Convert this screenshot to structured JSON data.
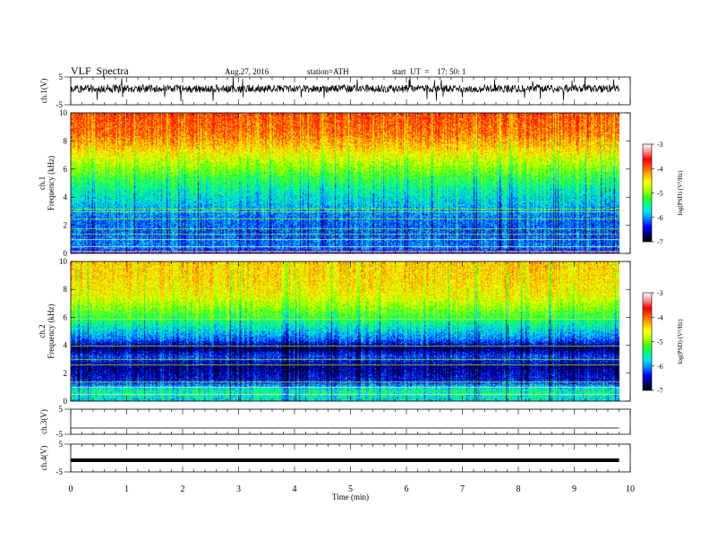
{
  "header": {
    "title": "VLF  Spectra",
    "date": "Aug.27, 2016",
    "station": "station=ATH",
    "start": "start  UT  =    17: 50: 1"
  },
  "colors": {
    "colormap": [
      "#000000",
      "#00006e",
      "#0000ff",
      "#0080ff",
      "#00e0ff",
      "#00ff80",
      "#40ff00",
      "#c0ff00",
      "#ffff00",
      "#ffb000",
      "#ff5000",
      "#ff0000",
      "#ff9090",
      "#ffffff"
    ]
  },
  "chart_data": [
    {
      "type": "line",
      "name": "ch1-waveform",
      "ylabel": "ch.1(V)",
      "ylim": [
        -5,
        5
      ],
      "yticks": [
        "5",
        "-5"
      ],
      "xlim": [
        0,
        10
      ],
      "x_end": 9.8,
      "baseline": 0.8,
      "amplitude": 1.4,
      "spike_amplitude": 4.5
    },
    {
      "type": "heatmap",
      "name": "ch1-spectrogram",
      "ylabel": "ch.1\nFrequency  (kHz)",
      "ylim": [
        0,
        10
      ],
      "yticks": [
        "0",
        "2",
        "4",
        "6",
        "8",
        "10"
      ],
      "xlim": [
        0,
        10
      ],
      "x_end": 9.8,
      "value_profile_by_freq_kHz": [
        {
          "f": 0,
          "v": -6.3
        },
        {
          "f": 0.5,
          "v": -5.9
        },
        {
          "f": 1.5,
          "v": -6.0
        },
        {
          "f": 2.5,
          "v": -5.9
        },
        {
          "f": 3.5,
          "v": -5.6
        },
        {
          "f": 4.5,
          "v": -5.3
        },
        {
          "f": 5.5,
          "v": -4.9
        },
        {
          "f": 6.5,
          "v": -4.4
        },
        {
          "f": 7.5,
          "v": -3.9
        },
        {
          "f": 8.5,
          "v": -3.5
        },
        {
          "f": 10,
          "v": -3.3
        }
      ],
      "horizontal_lines_kHz": [
        0.2,
        0.5,
        1.0,
        1.4,
        1.8,
        2.5,
        3.0,
        3.2
      ],
      "colorbar": {
        "label": "log(PSD) (V²/Hz)",
        "range": [
          -7,
          -3
        ],
        "ticks": [
          "-3",
          "-4",
          "-5",
          "-6",
          "-7"
        ]
      }
    },
    {
      "type": "heatmap",
      "name": "ch2-spectrogram",
      "ylabel": "ch.2\nFrequency  (kHz)",
      "ylim": [
        0,
        10
      ],
      "yticks": [
        "0",
        "2",
        "4",
        "6",
        "8",
        "10"
      ],
      "xlim": [
        0,
        10
      ],
      "x_end": 9.8,
      "value_profile_by_freq_kHz": [
        {
          "f": 0,
          "v": -5.5
        },
        {
          "f": 0.8,
          "v": -5.3
        },
        {
          "f": 1.5,
          "v": -6.3
        },
        {
          "f": 2.5,
          "v": -6.6
        },
        {
          "f": 3.2,
          "v": -6.1
        },
        {
          "f": 3.8,
          "v": -6.7
        },
        {
          "f": 4.5,
          "v": -5.9
        },
        {
          "f": 5.5,
          "v": -5.3
        },
        {
          "f": 6.5,
          "v": -4.7
        },
        {
          "f": 7.5,
          "v": -4.2
        },
        {
          "f": 8.5,
          "v": -4.0
        },
        {
          "f": 10,
          "v": -3.9
        }
      ],
      "horizontal_lines_kHz": [
        0.5,
        1.0,
        1.4,
        2.6,
        3.0,
        4.0,
        5.9
      ],
      "colorbar": {
        "label": "log(PSD) (V²/Hz)",
        "range": [
          -7,
          -3
        ],
        "ticks": [
          "-3",
          "-4",
          "-5",
          "-6",
          "-7"
        ]
      }
    },
    {
      "type": "line",
      "name": "ch3-waveform",
      "ylabel": "ch.3(V)",
      "ylim": [
        -5,
        5
      ],
      "yticks": [
        "5",
        "-5"
      ],
      "xlim": [
        0,
        10
      ],
      "x_end": 9.8,
      "constant": -2.5
    },
    {
      "type": "line",
      "name": "ch4-waveform",
      "ylabel": "ch.4(V)",
      "ylim": [
        -5,
        5
      ],
      "yticks": [
        "5",
        "-5"
      ],
      "xlim": [
        0,
        10
      ],
      "x_end": 9.8,
      "constant": -0.8
    }
  ],
  "xaxis": {
    "label": "Time  (min)",
    "ticks": [
      "0",
      "1",
      "2",
      "3",
      "4",
      "5",
      "6",
      "7",
      "8",
      "9",
      "10"
    ]
  }
}
